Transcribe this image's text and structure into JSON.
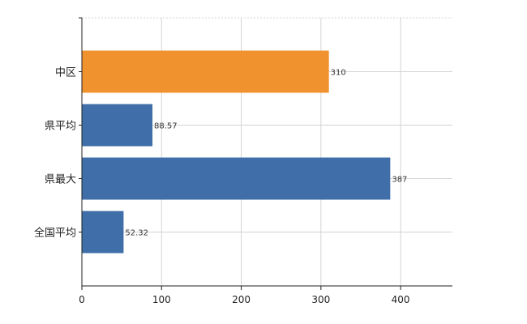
{
  "chart_data": {
    "type": "bar",
    "orientation": "horizontal",
    "categories": [
      "中区",
      "県平均",
      "県最大",
      "全国平均"
    ],
    "values": [
      310,
      88.57,
      387,
      52.32
    ],
    "value_labels": [
      "310",
      "88.57",
      "387",
      "52.32"
    ],
    "xlim": [
      0,
      465
    ],
    "x_ticks": [
      0,
      100,
      200,
      300,
      400
    ],
    "x_tick_labels": [
      "0",
      "100",
      "200",
      "300",
      "400"
    ],
    "grid": true,
    "legend": "none",
    "bar_colors": [
      "#f0922e",
      "#3f6ea8",
      "#3f6ea8",
      "#3f6ea8"
    ]
  }
}
